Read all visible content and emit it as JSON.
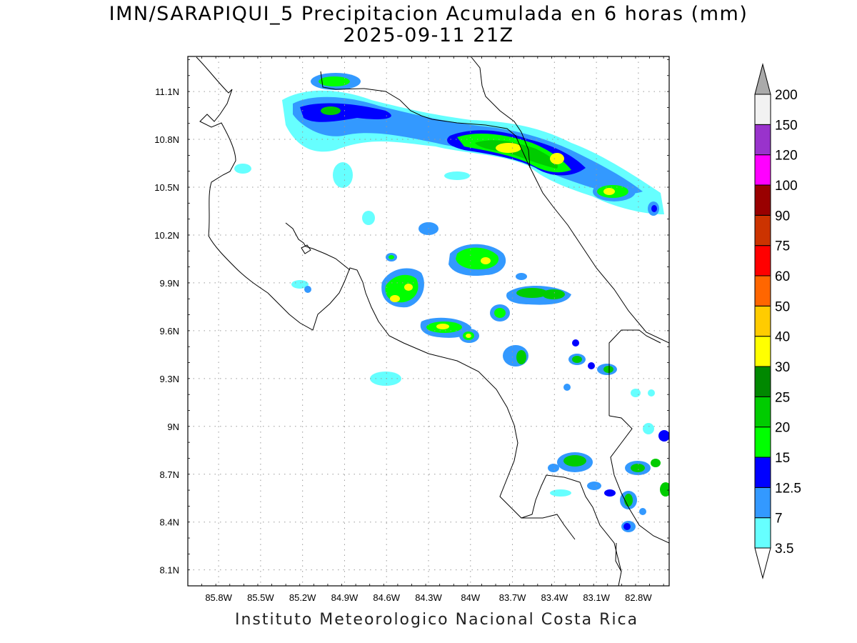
{
  "title": {
    "line1": "IMN/SARAPIQUI_5 Precipitacion Acumulada en 6 horas (mm)",
    "line2": "2025-09-11 21Z"
  },
  "footer": "Instituto Meteorologico Nacional Costa Rica",
  "map": {
    "lon_range": [
      -86.02,
      -82.58
    ],
    "lat_range": [
      8.0,
      11.32
    ],
    "x_ticks": [
      "85.8W",
      "85.5W",
      "85.2W",
      "84.9W",
      "84.6W",
      "84.3W",
      "84W",
      "83.7W",
      "83.4W",
      "83.1W",
      "82.8W"
    ],
    "x_tick_values": [
      -85.8,
      -85.5,
      -85.2,
      -84.9,
      -84.6,
      -84.3,
      -84.0,
      -83.7,
      -83.4,
      -83.1,
      -82.8
    ],
    "y_ticks": [
      "8.1N",
      "8.4N",
      "8.7N",
      "9N",
      "9.3N",
      "9.6N",
      "9.9N",
      "10.2N",
      "10.5N",
      "10.8N",
      "11.1N"
    ],
    "y_tick_values": [
      8.1,
      8.4,
      8.7,
      9.0,
      9.3,
      9.6,
      9.9,
      10.2,
      10.5,
      10.8,
      11.1
    ],
    "grid": "dotted"
  },
  "legend": {
    "levels": [
      "3.5",
      "7",
      "12.5",
      "15",
      "20",
      "25",
      "30",
      "40",
      "50",
      "60",
      "75",
      "90",
      "100",
      "120",
      "150",
      "200"
    ],
    "colors": [
      "#66ffff",
      "#3399ff",
      "#0000ff",
      "#00ff00",
      "#00cc00",
      "#008800",
      "#ffff00",
      "#ffcc00",
      "#ff6600",
      "#ff0000",
      "#cc3300",
      "#990000",
      "#ff00ff",
      "#9933cc",
      "#f2f2f2",
      "#aaaaaa"
    ]
  },
  "precip_cells": [
    {
      "lon": -84.92,
      "lat": 11.14,
      "level": 4
    },
    {
      "lon": -85.05,
      "lat": 10.95,
      "level": 3
    },
    {
      "lon": -84.95,
      "lat": 10.92,
      "level": 1
    },
    {
      "lon": -83.95,
      "lat": 10.75,
      "level": 4
    },
    {
      "lon": -83.68,
      "lat": 10.74,
      "level": 6
    },
    {
      "lon": -83.38,
      "lat": 10.68,
      "level": 6
    },
    {
      "lon": -82.92,
      "lat": 10.46,
      "level": 5
    },
    {
      "lon": -83.97,
      "lat": 10.05,
      "level": 4
    },
    {
      "lon": -84.49,
      "lat": 9.86,
      "level": 6
    },
    {
      "lon": -84.51,
      "lat": 9.79,
      "level": 6
    },
    {
      "lon": -84.16,
      "lat": 9.62,
      "level": 6
    },
    {
      "lon": -83.98,
      "lat": 9.56,
      "level": 5
    },
    {
      "lon": -83.45,
      "lat": 9.83,
      "level": 4
    },
    {
      "lon": -83.75,
      "lat": 9.71,
      "level": 4
    },
    {
      "lon": -83.57,
      "lat": 9.43,
      "level": 4
    },
    {
      "lon": -83.18,
      "lat": 9.41,
      "level": 4
    },
    {
      "lon": -82.97,
      "lat": 9.35,
      "level": 4
    },
    {
      "lon": -83.18,
      "lat": 8.78,
      "level": 4
    },
    {
      "lon": -82.87,
      "lat": 8.55,
      "level": 4
    },
    {
      "lon": -82.82,
      "lat": 8.74,
      "level": 4
    },
    {
      "lon": -83.38,
      "lat": 8.75,
      "level": 3
    },
    {
      "lon": -83.1,
      "lat": 8.62,
      "level": 3
    },
    {
      "lon": -82.6,
      "lat": 8.6,
      "level": 3
    }
  ]
}
